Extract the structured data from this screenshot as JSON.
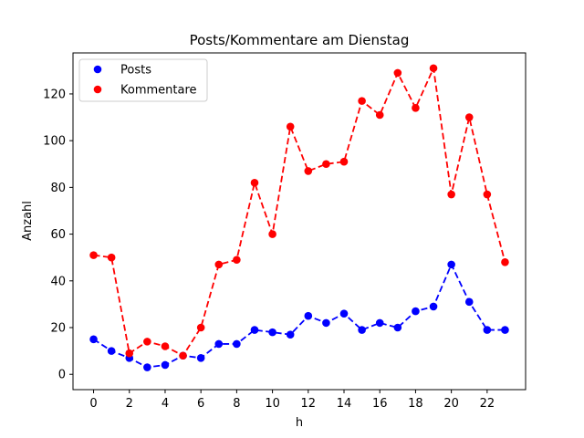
{
  "chart_data": {
    "type": "line",
    "title": "Posts/Kommentare am Dienstag",
    "xlabel": "h",
    "ylabel": "Anzahl",
    "x": [
      0,
      1,
      2,
      3,
      4,
      5,
      6,
      7,
      8,
      9,
      10,
      11,
      12,
      13,
      14,
      15,
      16,
      17,
      18,
      19,
      20,
      21,
      22,
      23
    ],
    "xlim": [
      -1.15,
      24.15
    ],
    "ylim": [
      -6.55,
      137.55
    ],
    "xticks": [
      0,
      2,
      4,
      6,
      8,
      10,
      12,
      14,
      16,
      18,
      20,
      22
    ],
    "yticks": [
      0,
      20,
      40,
      60,
      80,
      100,
      120
    ],
    "grid": false,
    "legend_position": "upper-left",
    "series": [
      {
        "name": "Posts",
        "color": "#0000ff",
        "linestyle": "dashed",
        "marker": "circle",
        "values": [
          15,
          10,
          7,
          3,
          4,
          8,
          7,
          13,
          13,
          19,
          18,
          17,
          25,
          22,
          26,
          19,
          22,
          20,
          27,
          29,
          47,
          31,
          19,
          19
        ]
      },
      {
        "name": "Kommentare",
        "color": "#ff0000",
        "linestyle": "dashed",
        "marker": "circle",
        "values": [
          51,
          50,
          9,
          14,
          12,
          8,
          20,
          47,
          49,
          82,
          60,
          106,
          87,
          90,
          91,
          117,
          111,
          129,
          114,
          131,
          77,
          110,
          77,
          48
        ]
      }
    ]
  }
}
